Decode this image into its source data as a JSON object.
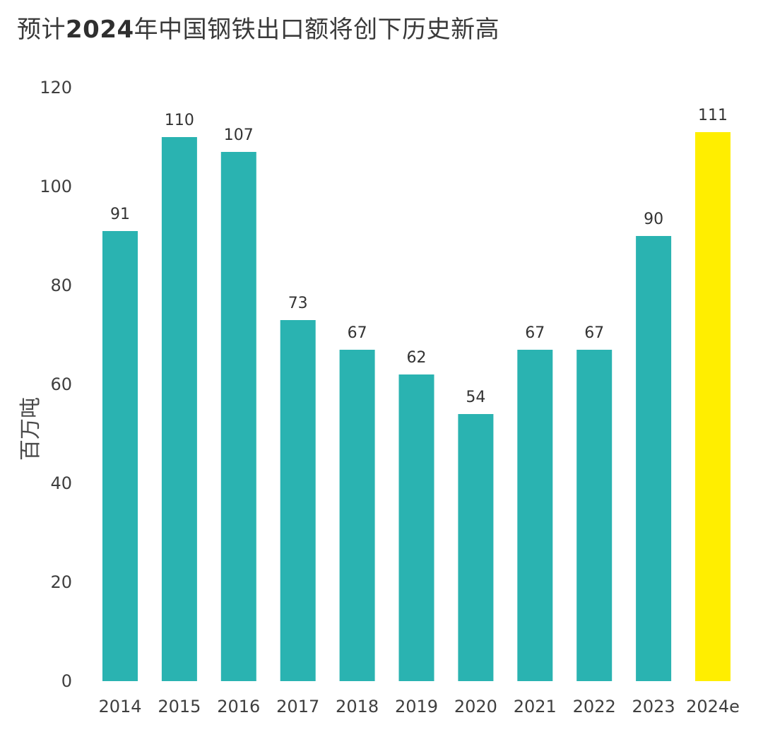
{
  "title_prefix": "预计",
  "title_year": "2024",
  "title_suffix": "年中国钢铁出口额将创下历史新高",
  "chart_data": {
    "type": "bar",
    "title": "预计2024年中国钢铁出口额将创下历史新高",
    "xlabel": "",
    "ylabel": "百万吨",
    "categories": [
      "2014",
      "2015",
      "2016",
      "2017",
      "2018",
      "2019",
      "2020",
      "2021",
      "2022",
      "2023",
      "2024e"
    ],
    "values": [
      91,
      110,
      107,
      73,
      67,
      62,
      54,
      67,
      67,
      90,
      111
    ],
    "data_labels": [
      "91",
      "110",
      "107",
      "73",
      "67",
      "62",
      "54",
      "67",
      "67",
      "90",
      "111"
    ],
    "ylim": [
      0,
      120
    ],
    "yticks": [
      "0",
      "20",
      "40",
      "60",
      "80",
      "100",
      "120"
    ],
    "grid": false,
    "colors": {
      "bar": "#2ab3b1",
      "highlight": "#ffee00"
    },
    "highlight_category": "2024e"
  }
}
